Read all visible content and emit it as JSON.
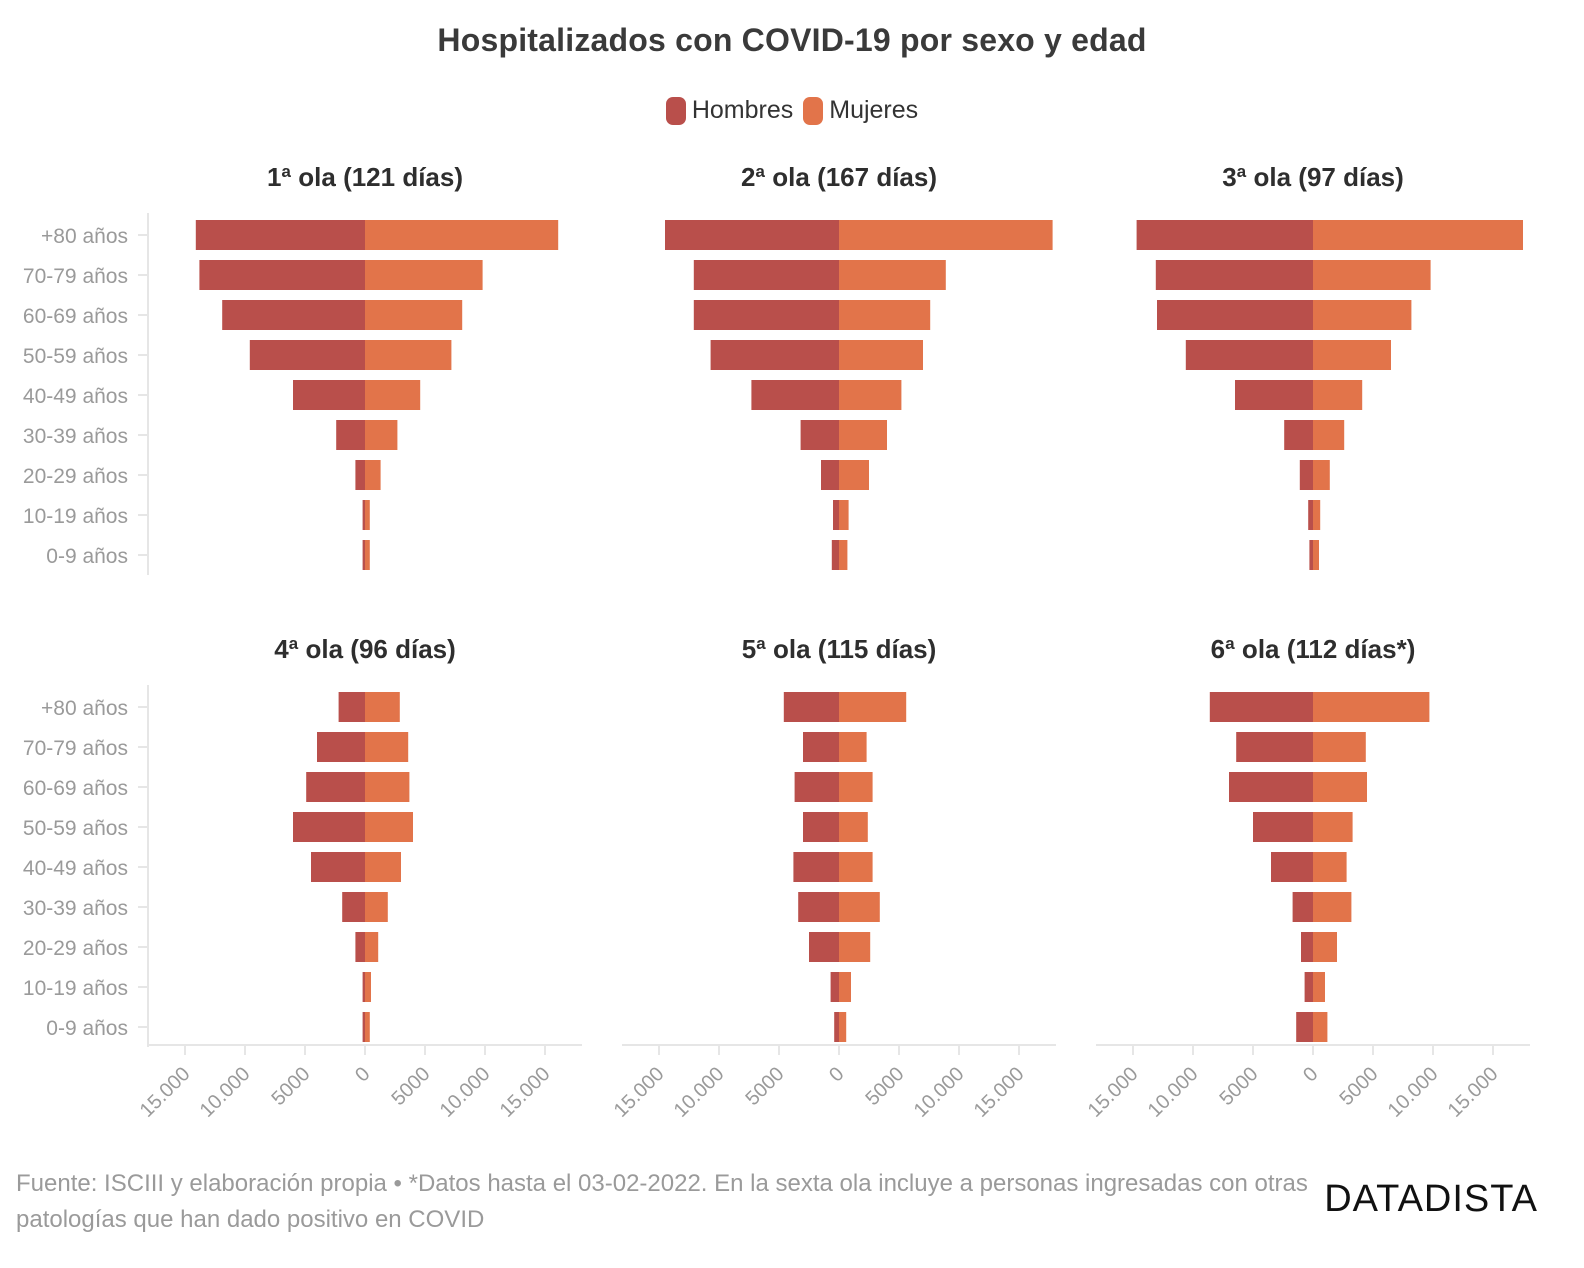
{
  "title": "Hospitalizados con COVID-19 por sexo y edad",
  "legend": {
    "men": "Hombres",
    "women": "Mujeres"
  },
  "colors": {
    "men": "#b94f4b",
    "women": "#e2744a",
    "axis": "#e6e6e6",
    "tick_text": "#9a9a9a"
  },
  "footer": "Fuente: ISCIII y elaboración propia • *Datos hasta el 03-02-2022. En la sexta ola incluye a personas ingresadas con otras patologías que han dado positivo en COVID",
  "brand": "DATADISTA",
  "chart_data": {
    "type": "bar",
    "orientation": "horizontal-pyramid",
    "categories": [
      "+80 años",
      "70-79 años",
      "60-69 años",
      "50-59 años",
      "40-49 años",
      "30-39 años",
      "20-29 años",
      "10-19 años",
      "0-9 años"
    ],
    "x_ticks": [
      -15000,
      -10000,
      -5000,
      0,
      5000,
      10000,
      15000
    ],
    "x_tick_labels": [
      "15.000",
      "10.000",
      "5000",
      "0",
      "5000",
      "10.000",
      "15.000"
    ],
    "xlim": [
      -18000,
      18000
    ],
    "panels": [
      {
        "title": "1ª ola (121 días)",
        "series": [
          {
            "name": "Hombres",
            "values": [
              14100,
              13800,
              11900,
              9600,
              6000,
              2400,
              800,
              200,
              200
            ]
          },
          {
            "name": "Mujeres",
            "values": [
              16100,
              9800,
              8100,
              7200,
              4600,
              2700,
              1300,
              400,
              400
            ]
          }
        ]
      },
      {
        "title": "2ª ola (167 días)",
        "series": [
          {
            "name": "Hombres",
            "values": [
              14500,
              12100,
              12100,
              10700,
              7300,
              3200,
              1500,
              500,
              600
            ]
          },
          {
            "name": "Mujeres",
            "values": [
              17800,
              8900,
              7600,
              7000,
              5200,
              4000,
              2500,
              800,
              700
            ]
          }
        ]
      },
      {
        "title": "3ª ola (97 días)",
        "series": [
          {
            "name": "Hombres",
            "values": [
              14700,
              13100,
              13000,
              10600,
              6500,
              2400,
              1100,
              400,
              300
            ]
          },
          {
            "name": "Mujeres",
            "values": [
              17500,
              9800,
              8200,
              6500,
              4100,
              2600,
              1400,
              600,
              500
            ]
          }
        ]
      },
      {
        "title": "4ª ola (96 días)",
        "series": [
          {
            "name": "Hombres",
            "values": [
              2200,
              4000,
              4900,
              6000,
              4500,
              1900,
              800,
              200,
              200
            ]
          },
          {
            "name": "Mujeres",
            "values": [
              2900,
              3600,
              3700,
              4000,
              3000,
              1900,
              1100,
              500,
              400
            ]
          }
        ]
      },
      {
        "title": "5ª ola (115 días)",
        "series": [
          {
            "name": "Hombres",
            "values": [
              4600,
              3000,
              3700,
              3000,
              3800,
              3400,
              2500,
              700,
              400
            ]
          },
          {
            "name": "Mujeres",
            "values": [
              5600,
              2300,
              2800,
              2400,
              2800,
              3400,
              2600,
              1000,
              600
            ]
          }
        ]
      },
      {
        "title": "6ª ola (112 días*)",
        "series": [
          {
            "name": "Hombres",
            "values": [
              8600,
              6400,
              7000,
              5000,
              3500,
              1700,
              1000,
              700,
              1400
            ]
          },
          {
            "name": "Mujeres",
            "values": [
              9700,
              4400,
              4500,
              3300,
              2800,
              3200,
              2000,
              1000,
              1200
            ]
          }
        ]
      }
    ]
  }
}
